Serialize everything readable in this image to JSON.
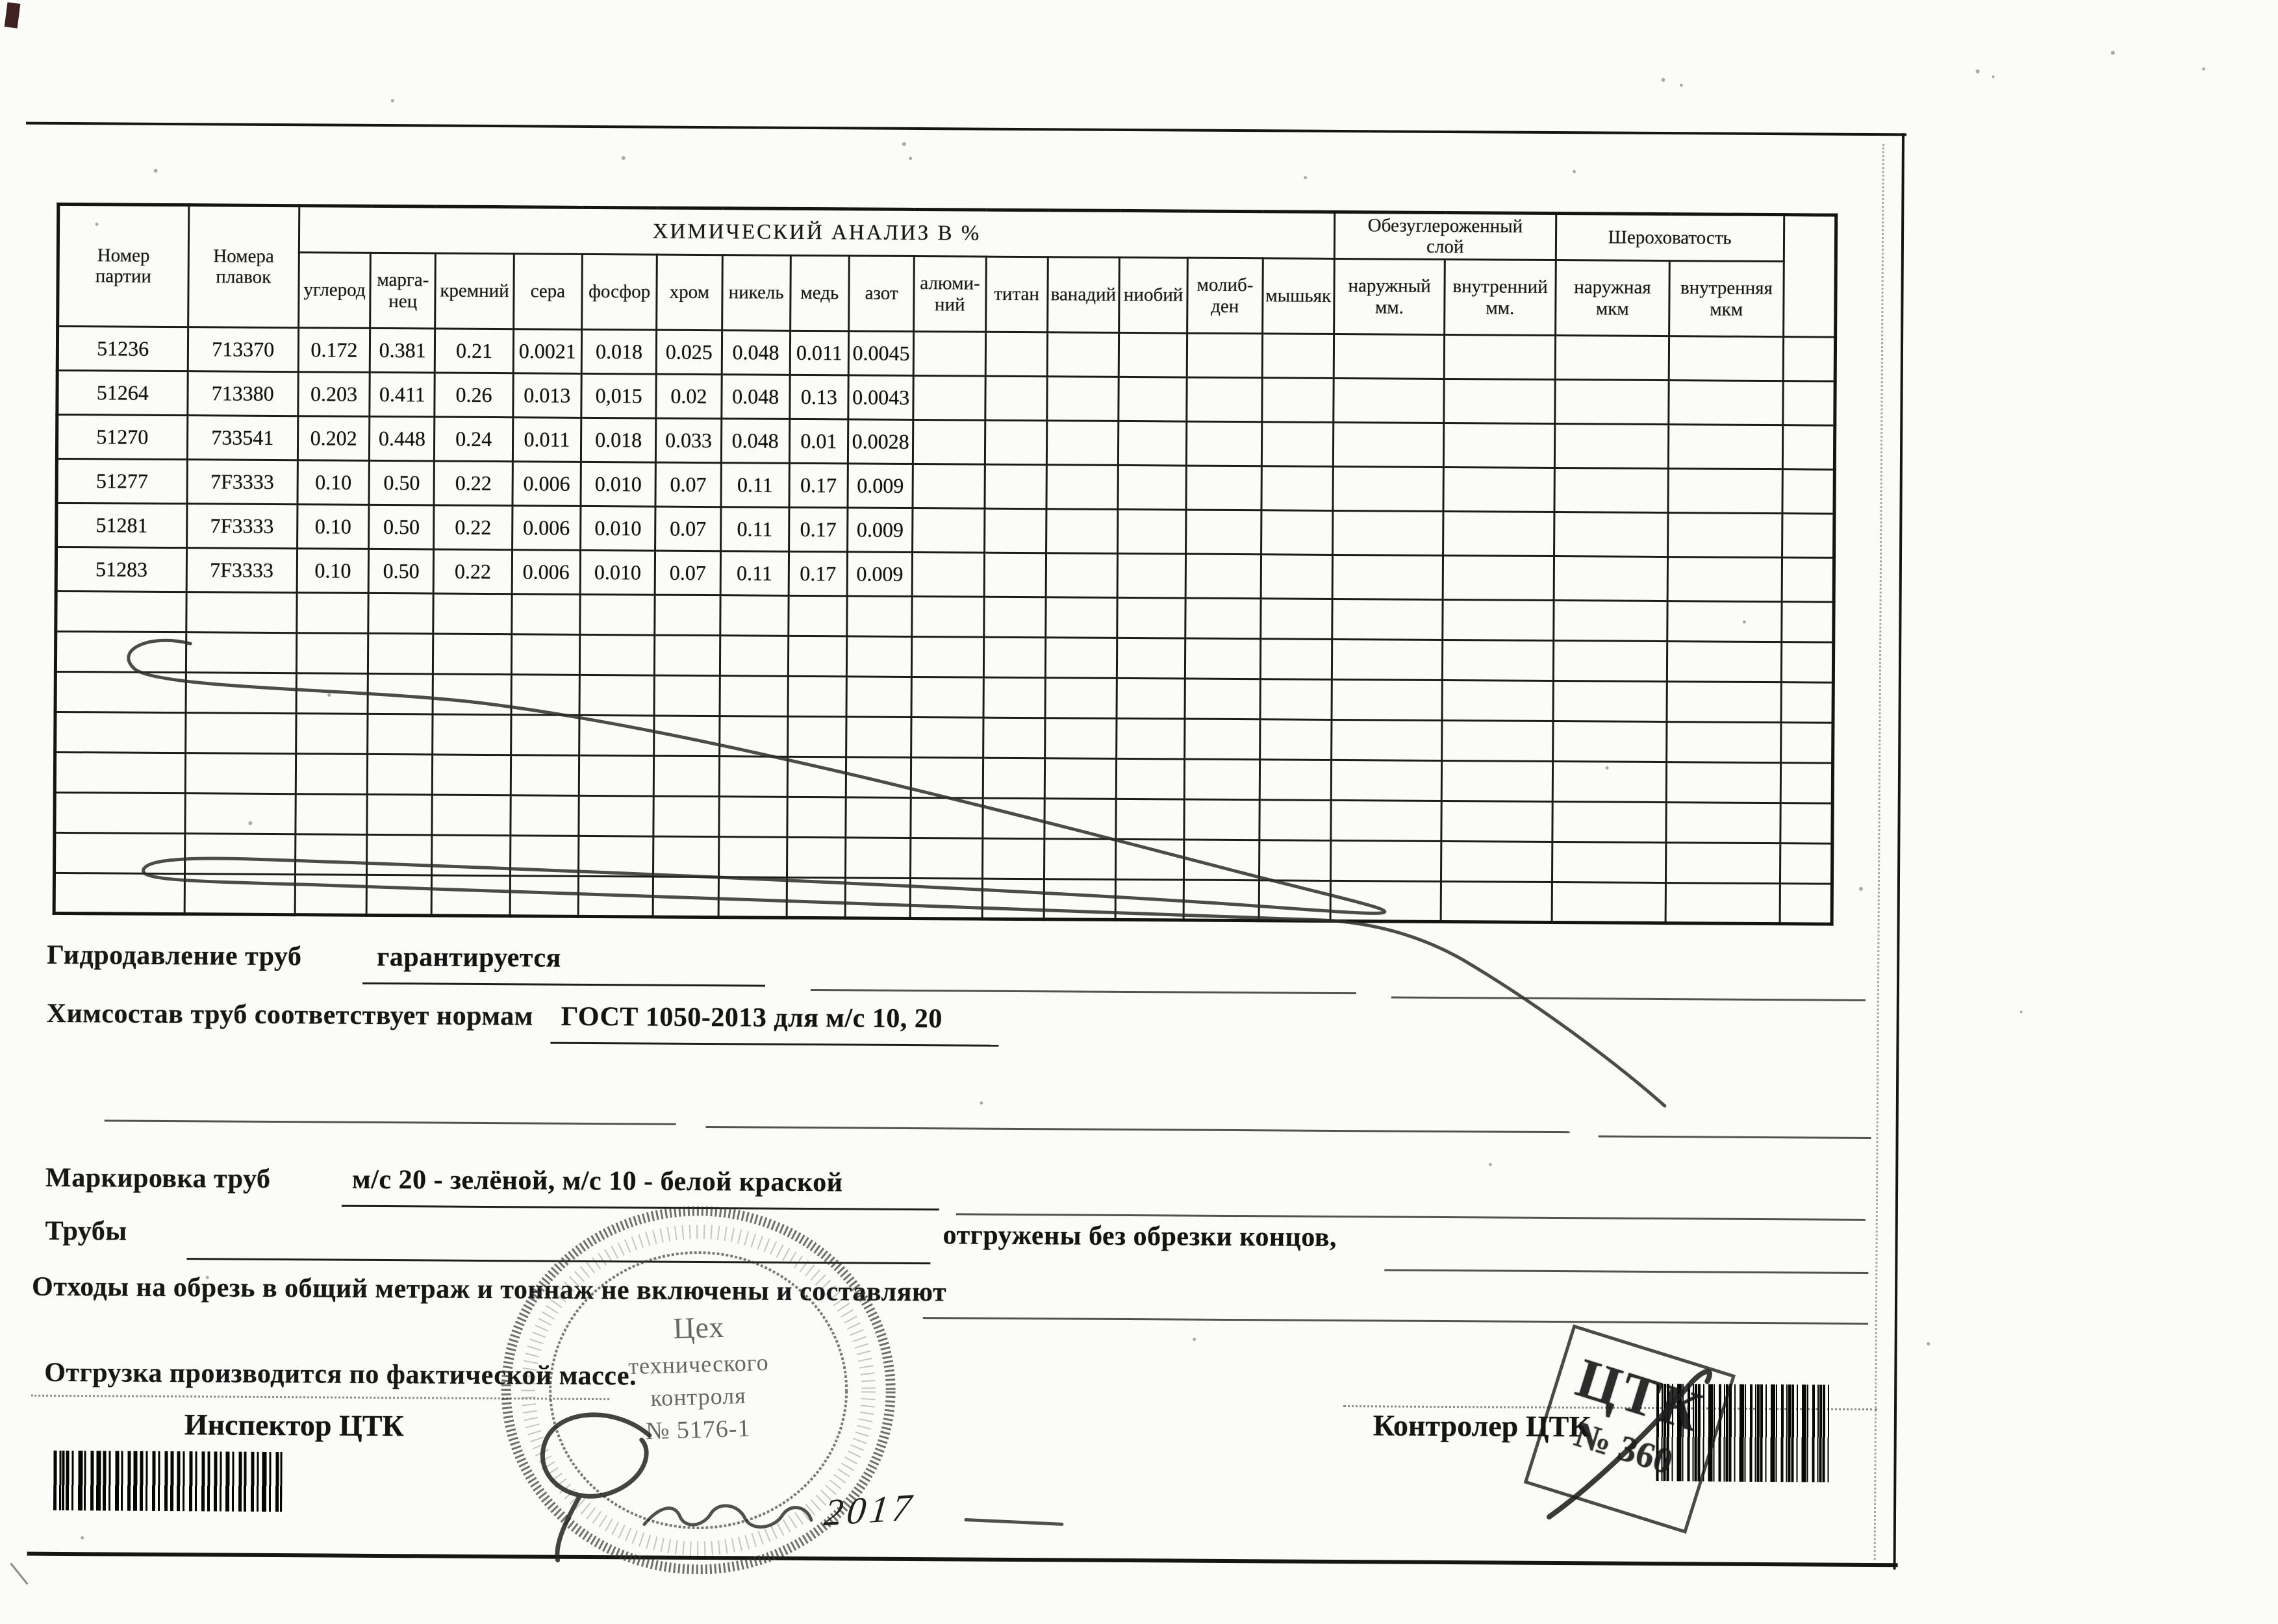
{
  "table": {
    "chem_title": "ХИМИЧЕСКИЙ АНАЛИЗ В %",
    "col_party": "Номер\nпартии",
    "col_melts": "Номера\nплавок",
    "chem_columns": [
      "углерод",
      "марга-\nнец",
      "кремний",
      "сера",
      "фосфор",
      "хром",
      "никель",
      "медь",
      "азот",
      "алюми-\nний",
      "титан",
      "ванадий",
      "ниобий",
      "молиб-\nден",
      "мышьяк"
    ],
    "decarb_group": "Обезуглероженный\nслой",
    "decarb_cols": [
      "наружный\nмм.",
      "внутренний\nмм."
    ],
    "rough_group": "Шероховатость",
    "rough_cols": [
      "наружная\nмкм",
      "внутренняя\nмкм"
    ],
    "rows": [
      {
        "party": "51236",
        "melt": "713370",
        "values": [
          "0.172",
          "0.381",
          "0.21",
          "0.0021",
          "0.018",
          "0.025",
          "0.048",
          "0.011",
          "0.0045"
        ]
      },
      {
        "party": "51264",
        "melt": "713380",
        "values": [
          "0.203",
          "0.411",
          "0.26",
          "0.013",
          "0,015",
          "0.02",
          "0.048",
          "0.13",
          "0.0043"
        ]
      },
      {
        "party": "51270",
        "melt": "733541",
        "values": [
          "0.202",
          "0.448",
          "0.24",
          "0.011",
          "0.018",
          "0.033",
          "0.048",
          "0.01",
          "0.0028"
        ]
      },
      {
        "party": "51277",
        "melt": "7F3333",
        "values": [
          "0.10",
          "0.50",
          "0.22",
          "0.006",
          "0.010",
          "0.07",
          "0.11",
          "0.17",
          "0.009"
        ]
      },
      {
        "party": "51281",
        "melt": "7F3333",
        "values": [
          "0.10",
          "0.50",
          "0.22",
          "0.006",
          "0.010",
          "0.07",
          "0.11",
          "0.17",
          "0.009"
        ]
      },
      {
        "party": "51283",
        "melt": "7F3333",
        "values": [
          "0.10",
          "0.50",
          "0.22",
          "0.006",
          "0.010",
          "0.07",
          "0.11",
          "0.17",
          "0.009"
        ]
      }
    ],
    "empty_row_count": 8
  },
  "notes": {
    "hydro_label": "Гидродавление труб",
    "hydro_value": "гарантируется",
    "chem_label": "Химсостав труб соответствует нормам",
    "chem_value": "ГОСТ 1050-2013 для м/с 10, 20",
    "marking_label": "Маркировка труб",
    "marking_value": "м/с 20 - зелёной, м/с 10 - белой краской",
    "pipes_label": "Трубы",
    "pipes_note": "отгружены без обрезки концов,",
    "waste_label": "Отходы на обрезь в общий метраж и тоннаж не включены и составляют",
    "shipping_note": "Отгрузка производится по фактической массе."
  },
  "signatures": {
    "inspector_label": "Инспектор ЦТК",
    "controller_label": "Контролер ЦТК"
  },
  "stamps": {
    "round_line1": "Цех",
    "round_line2": "технического",
    "round_line3": "контроля",
    "round_line4": "№ 5176-1",
    "square_line1": "ЦТК",
    "square_line2": "№ 360",
    "handwritten_date": "2017"
  }
}
